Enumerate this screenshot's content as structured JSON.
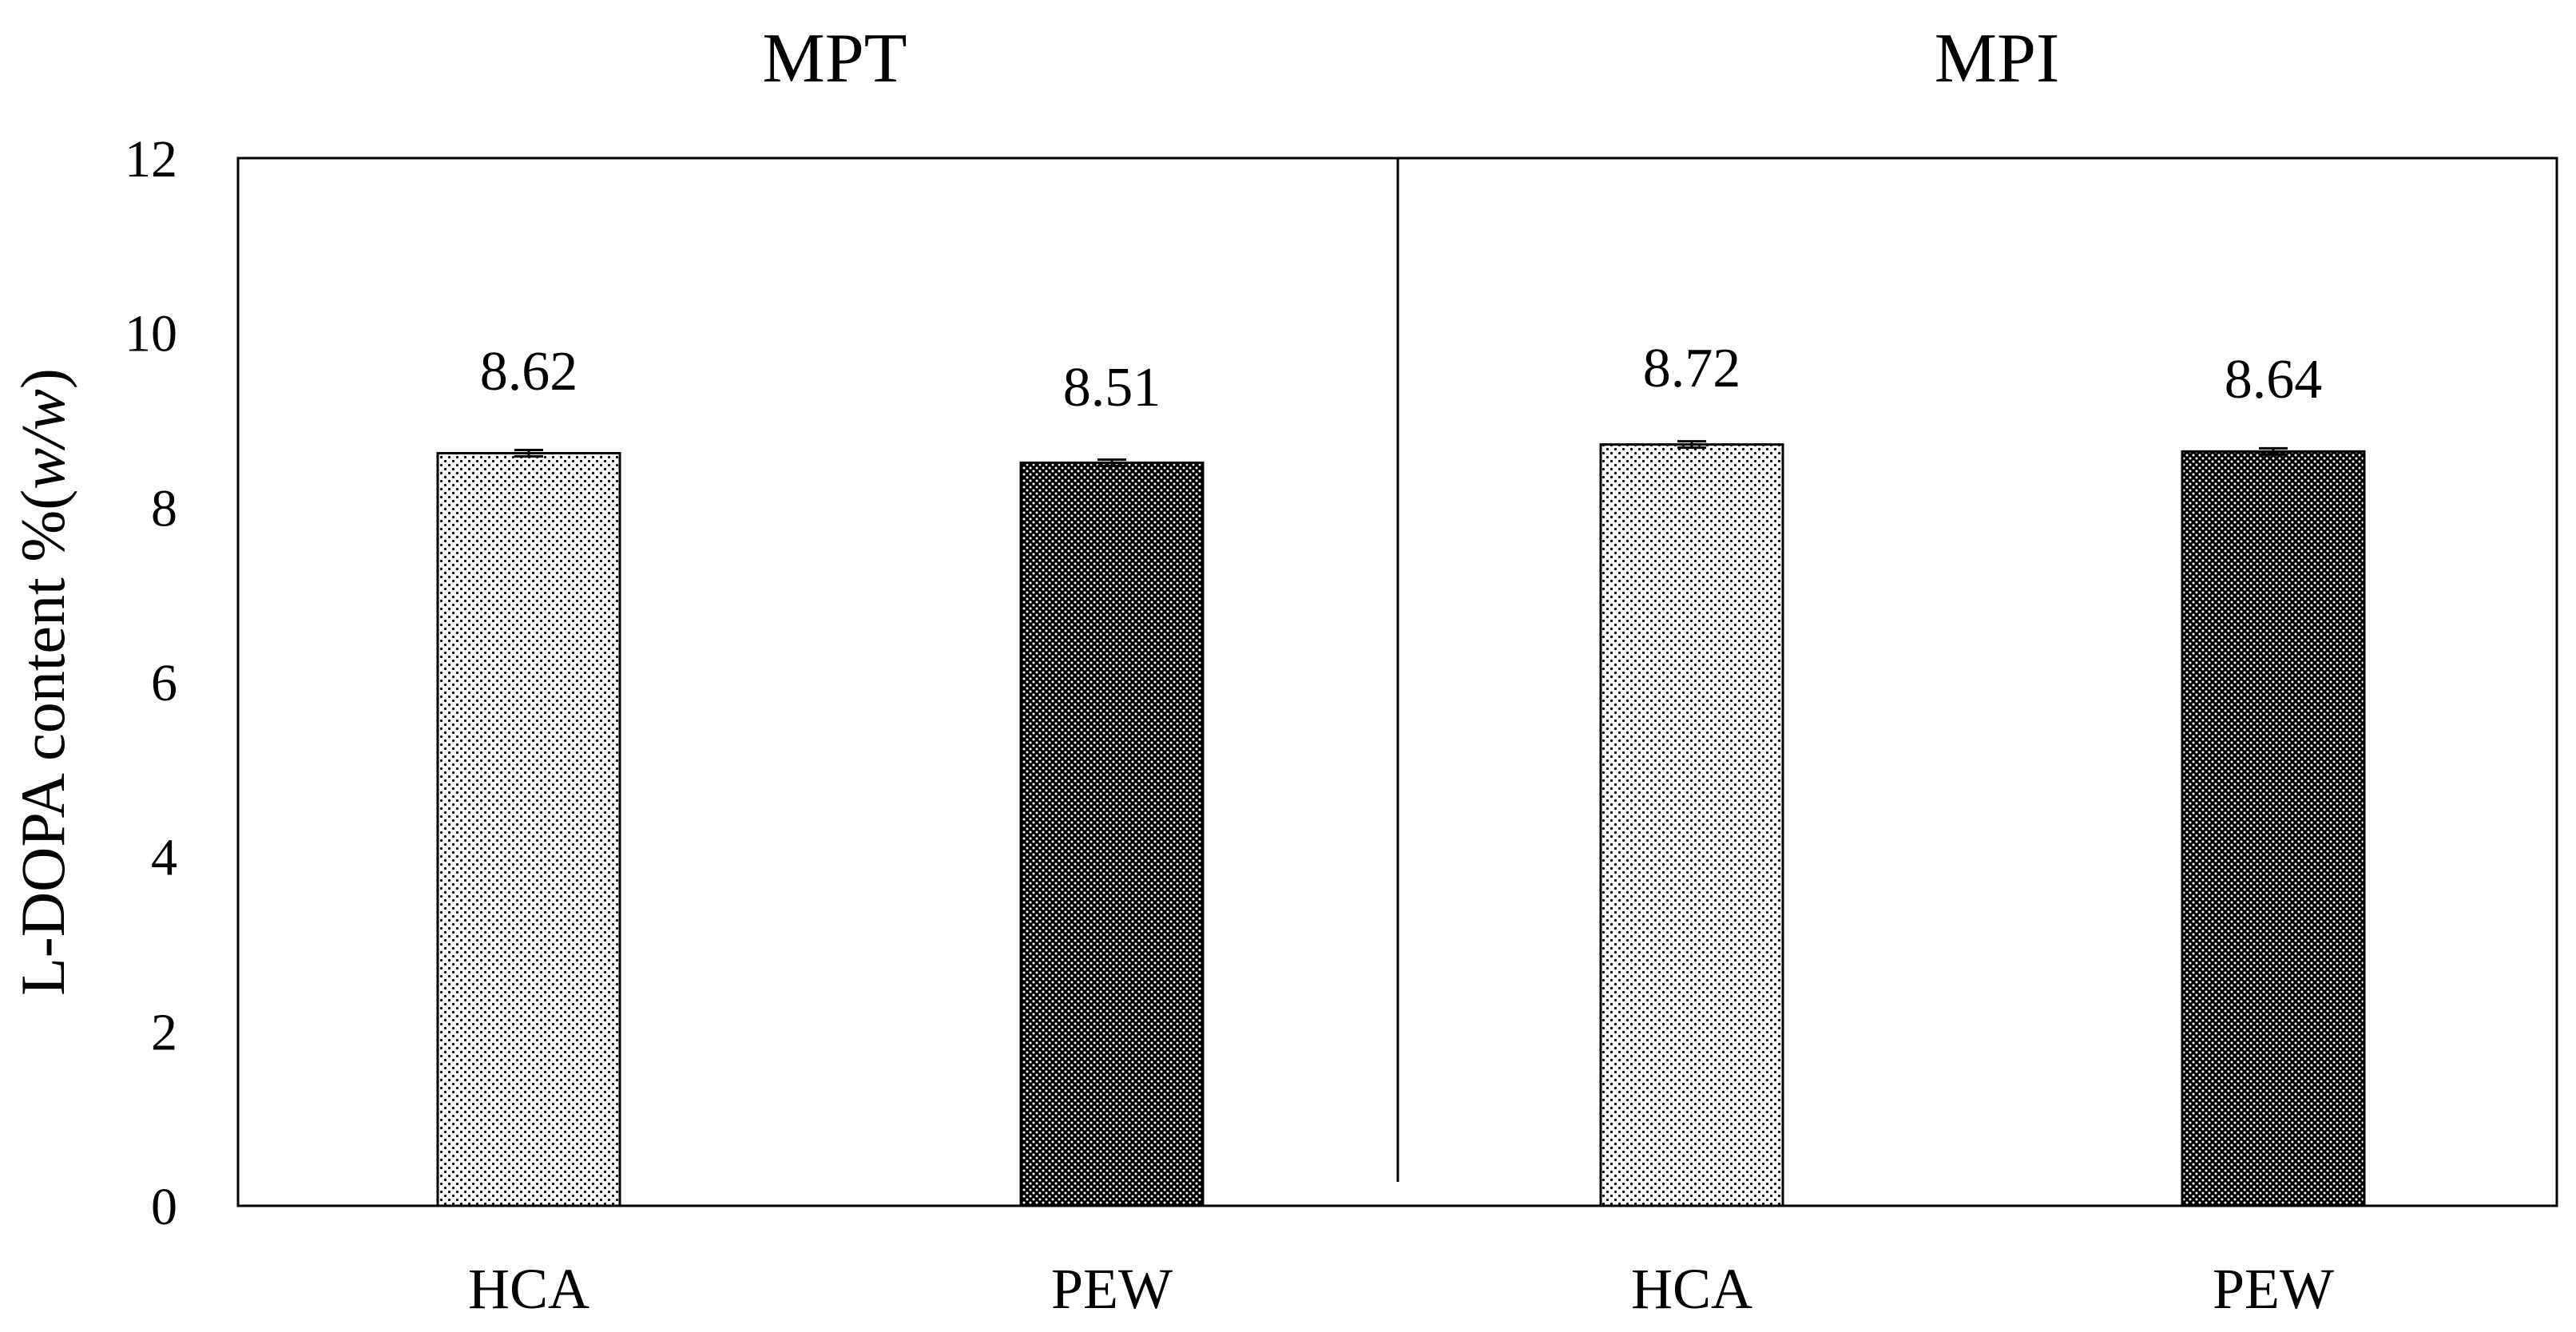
{
  "chart_data": {
    "type": "bar",
    "groups": [
      {
        "title": "MPT",
        "categories": [
          "HCA",
          "PEW"
        ],
        "values": [
          8.62,
          8.51
        ],
        "value_labels": [
          "8.62",
          "8.51"
        ]
      },
      {
        "title": "MPI",
        "categories": [
          "HCA",
          "PEW"
        ],
        "values": [
          8.72,
          8.64
        ],
        "value_labels": [
          "8.72",
          "8.64"
        ]
      }
    ],
    "ylabel": "L-DOPA content %(w/w)",
    "ylabel_parts": {
      "main": "L-DOPA content %(",
      "italic": "w/w",
      "close": ")"
    },
    "ylim": [
      0,
      12
    ],
    "yticks": [
      0,
      2,
      4,
      6,
      8,
      10,
      12
    ],
    "grid": false,
    "legend": "none",
    "error_bars": true,
    "bar_patterns": {
      "HCA": "light-dotted",
      "PEW": "dark-dotted"
    },
    "colors": {
      "bar_outline": "#000000",
      "light_fill": "#ffffff",
      "dark_fill": "#ffffff"
    }
  }
}
